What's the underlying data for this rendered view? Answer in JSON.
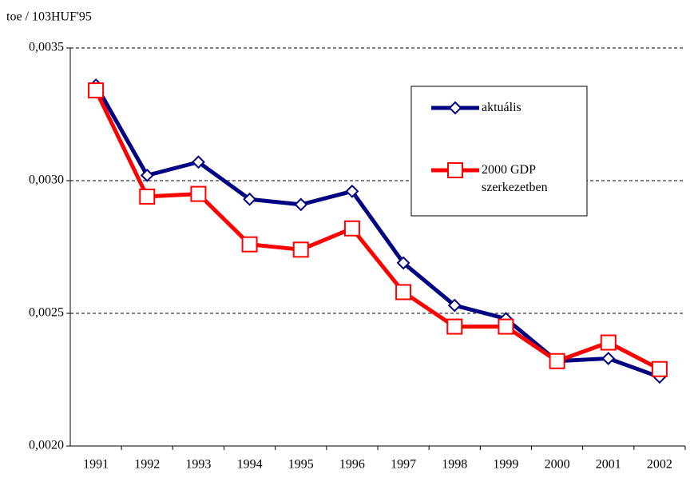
{
  "chart_data": {
    "type": "line",
    "y_axis_label": "toe / 103HUF'95",
    "categories": [
      "1991",
      "1992",
      "1993",
      "1994",
      "1995",
      "1996",
      "1997",
      "1998",
      "1999",
      "2000",
      "2001",
      "2002"
    ],
    "series": [
      {
        "name": "aktuális",
        "color": "#000080",
        "marker": "diamond",
        "values": [
          0.00336,
          0.00302,
          0.00307,
          0.00293,
          0.00291,
          0.00296,
          0.00269,
          0.00253,
          0.00248,
          0.00232,
          0.00233,
          0.00226
        ]
      },
      {
        "name": "2000 GDP szerkezetben",
        "color": "#ff0000",
        "marker": "square",
        "values": [
          0.00334,
          0.00294,
          0.00295,
          0.00276,
          0.00274,
          0.00282,
          0.00258,
          0.00245,
          0.00245,
          0.00232,
          0.00239,
          0.00229
        ]
      }
    ],
    "ylim": [
      0.002,
      0.0035
    ],
    "yticks": [
      {
        "value": 0.002,
        "label": "0,0020"
      },
      {
        "value": 0.0025,
        "label": "0,0025"
      },
      {
        "value": 0.003,
        "label": "0,0030"
      },
      {
        "value": 0.0035,
        "label": "0,0035"
      }
    ],
    "grid": true,
    "legend": "upper right"
  }
}
